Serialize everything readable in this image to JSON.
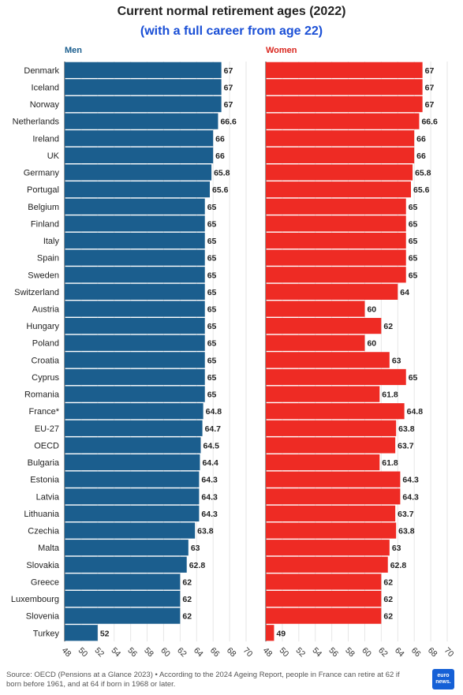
{
  "title": "Current normal retirement ages (2022)",
  "subtitle": "(with a full career from age 22)",
  "footer": "Source: OECD (Pensions at a Glance 2023) • According to the 2024 Ageing Report, people in France can retire at 62 if born before 1961, and at 64 if born in 1968 or later.",
  "logo_text": "euro news.",
  "colors": {
    "men": "#1b5e8e",
    "women": "#ee2b24",
    "men_label": "#1b5e8e",
    "women_label": "#d9271f"
  },
  "chart_data": [
    {
      "type": "bar",
      "orientation": "horizontal",
      "panel_label": "Men",
      "xlim": [
        48,
        70
      ],
      "ticks": [
        48,
        50,
        52,
        54,
        56,
        58,
        60,
        62,
        64,
        66,
        68,
        70
      ],
      "categories": [
        "Denmark",
        "Iceland",
        "Norway",
        "Netherlands",
        "Ireland",
        "UK",
        "Germany",
        "Portugal",
        "Belgium",
        "Finland",
        "Italy",
        "Spain",
        "Sweden",
        "Switzerland",
        "Austria",
        "Hungary",
        "Poland",
        "Croatia",
        "Cyprus",
        "Romania",
        "France*",
        "EU-27",
        "OECD",
        "Bulgaria",
        "Estonia",
        "Latvia",
        "Lithuania",
        "Czechia",
        "Malta",
        "Slovakia",
        "Greece",
        "Luxembourg",
        "Slovenia",
        "Turkey"
      ],
      "values": [
        67,
        67,
        67,
        66.6,
        66,
        66,
        65.8,
        65.6,
        65,
        65,
        65,
        65,
        65,
        65,
        65,
        65,
        65,
        65,
        65,
        65,
        64.8,
        64.7,
        64.5,
        64.4,
        64.3,
        64.3,
        64.3,
        63.8,
        63,
        62.8,
        62,
        62,
        62,
        52
      ]
    },
    {
      "type": "bar",
      "orientation": "horizontal",
      "panel_label": "Women",
      "xlim": [
        48,
        70
      ],
      "ticks": [
        48,
        50,
        52,
        54,
        56,
        58,
        60,
        62,
        64,
        66,
        68,
        70
      ],
      "categories": [
        "Denmark",
        "Iceland",
        "Norway",
        "Netherlands",
        "Ireland",
        "UK",
        "Germany",
        "Portugal",
        "Belgium",
        "Finland",
        "Italy",
        "Spain",
        "Sweden",
        "Switzerland",
        "Austria",
        "Hungary",
        "Poland",
        "Croatia",
        "Cyprus",
        "Romania",
        "France*",
        "EU-27",
        "OECD",
        "Bulgaria",
        "Estonia",
        "Latvia",
        "Lithuania",
        "Czechia",
        "Malta",
        "Slovakia",
        "Greece",
        "Luxembourg",
        "Slovenia",
        "Turkey"
      ],
      "values": [
        67,
        67,
        67,
        66.6,
        66,
        66,
        65.8,
        65.6,
        65,
        65,
        65,
        65,
        65,
        64,
        60,
        62,
        60,
        63,
        65,
        61.8,
        64.8,
        63.8,
        63.7,
        61.8,
        64.3,
        64.3,
        63.7,
        63.8,
        63,
        62.8,
        62,
        62,
        62,
        49
      ]
    }
  ]
}
